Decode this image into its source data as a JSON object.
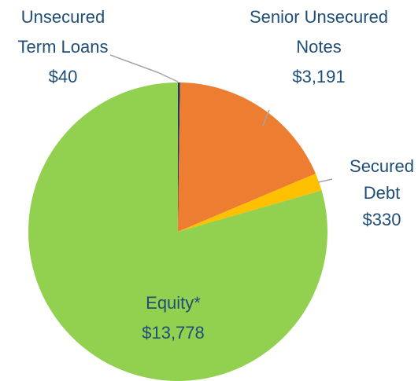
{
  "chart_data": {
    "type": "pie",
    "categories": [
      "Unsecured Term Loans",
      "Senior Unsecured Notes",
      "Secured Debt",
      "Equity*"
    ],
    "values": [
      40,
      3191,
      330,
      13778
    ],
    "value_labels": [
      "$40",
      "$3,191",
      "$330",
      "$13,778"
    ],
    "colors": [
      "#1f3864",
      "#ed7d31",
      "#ffc000",
      "#92d050"
    ]
  }
}
